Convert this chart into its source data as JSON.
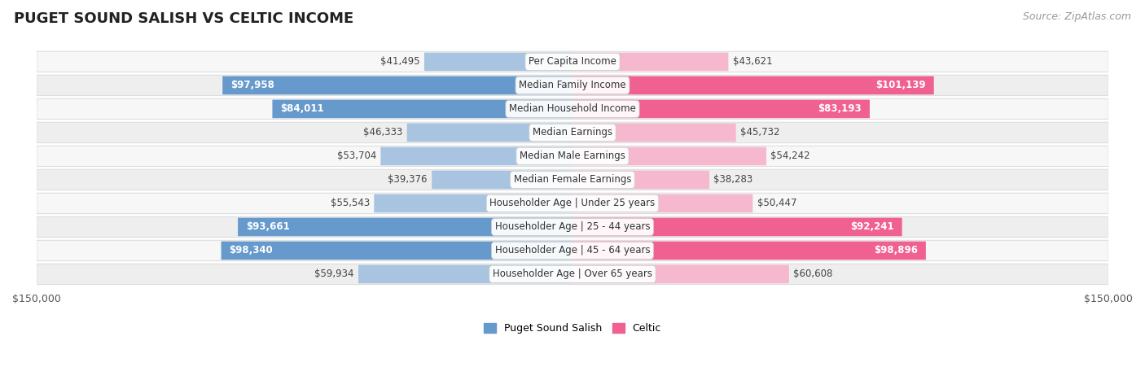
{
  "title": "PUGET SOUND SALISH VS CELTIC INCOME",
  "source": "Source: ZipAtlas.com",
  "categories": [
    "Per Capita Income",
    "Median Family Income",
    "Median Household Income",
    "Median Earnings",
    "Median Male Earnings",
    "Median Female Earnings",
    "Householder Age | Under 25 years",
    "Householder Age | 25 - 44 years",
    "Householder Age | 45 - 64 years",
    "Householder Age | Over 65 years"
  ],
  "left_values": [
    41495,
    97958,
    84011,
    46333,
    53704,
    39376,
    55543,
    93661,
    98340,
    59934
  ],
  "right_values": [
    43621,
    101139,
    83193,
    45732,
    54242,
    38283,
    50447,
    92241,
    98896,
    60608
  ],
  "left_labels": [
    "$41,495",
    "$97,958",
    "$84,011",
    "$46,333",
    "$53,704",
    "$39,376",
    "$55,543",
    "$93,661",
    "$98,340",
    "$59,934"
  ],
  "right_labels": [
    "$43,621",
    "$101,139",
    "$83,193",
    "$45,732",
    "$54,242",
    "$38,283",
    "$50,447",
    "$92,241",
    "$98,896",
    "$60,608"
  ],
  "left_color_small": "#a8c4e0",
  "right_color_small": "#f5b8ce",
  "left_color_large": "#6699cc",
  "right_color_large": "#f06090",
  "max_value": 150000,
  "label_threshold": 75000,
  "background_color": "#ffffff",
  "row_bg_light": "#f7f7f7",
  "row_bg_dark": "#eeeeee",
  "row_border": "#dddddd",
  "legend_left": "Puget Sound Salish",
  "legend_right": "Celtic",
  "title_fontsize": 13,
  "source_fontsize": 9,
  "label_fontsize": 8.5,
  "cat_fontsize": 8.5
}
